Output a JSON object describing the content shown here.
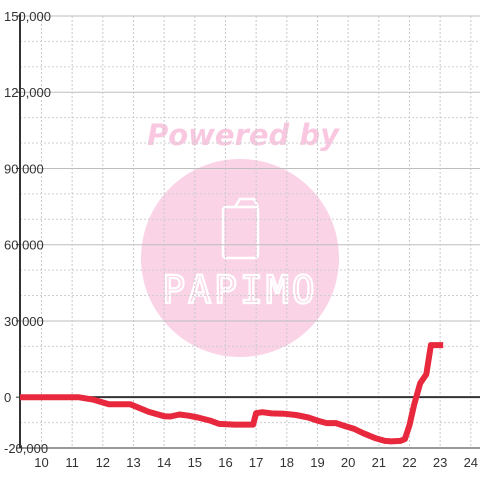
{
  "watermark": {
    "powered_text": "Powered by",
    "brand_text": "PAPIMO",
    "color": "#f9c8e0",
    "icon": "phone-icon"
  },
  "chart_data": {
    "type": "line",
    "title": "",
    "xlabel": "",
    "ylabel": "",
    "xlim": [
      9.3,
      24.3
    ],
    "ylim": [
      -20000,
      150000
    ],
    "x_ticks": [
      10,
      11,
      12,
      13,
      14,
      15,
      16,
      17,
      18,
      19,
      20,
      21,
      22,
      23,
      24
    ],
    "x_tick_labels": [
      "10",
      "11",
      "12",
      "13",
      "14",
      "15",
      "16",
      "17",
      "18",
      "19",
      "20",
      "21",
      "22",
      "23",
      "24"
    ],
    "y_ticks": [
      -20000,
      0,
      30000,
      60000,
      90000,
      120000,
      150000
    ],
    "y_tick_labels": [
      "-20,000",
      "0",
      "30,000",
      "60,000",
      "90,000",
      "120,000",
      "150,000"
    ],
    "grid": true,
    "line_color": "#e8283c",
    "series": [
      {
        "x": [
          9.3,
          10.5,
          11.2,
          11.7,
          12.2,
          12.9,
          13.5,
          14.0,
          14.2,
          14.5,
          14.8,
          15.1,
          15.5,
          15.8,
          16.3,
          16.7,
          16.9,
          17.0,
          17.2,
          17.5,
          17.9,
          18.3,
          18.7,
          19.0,
          19.3,
          19.6,
          19.9,
          20.2,
          20.5,
          20.9,
          21.2,
          21.4,
          21.7,
          21.85,
          22.0,
          22.15,
          22.35,
          22.55,
          22.7,
          23.1
        ],
        "y": [
          0,
          0,
          0,
          -1000,
          -2800,
          -2800,
          -5800,
          -7500,
          -7600,
          -6800,
          -7300,
          -8000,
          -9200,
          -10500,
          -10800,
          -10800,
          -10800,
          -6300,
          -5900,
          -6400,
          -6500,
          -7000,
          -8000,
          -9200,
          -10200,
          -10200,
          -11400,
          -12500,
          -14200,
          -16200,
          -17200,
          -17400,
          -17200,
          -16500,
          -11000,
          -3000,
          5500,
          9000,
          20500,
          20500
        ]
      }
    ]
  }
}
